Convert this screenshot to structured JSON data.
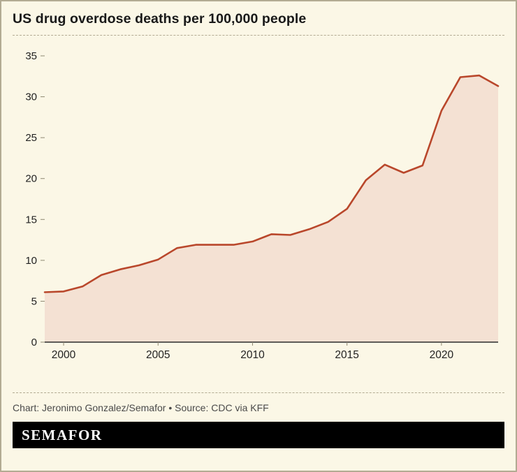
{
  "page": {
    "background": "#fbf7e6",
    "border_color": "#b3ab93"
  },
  "header": {
    "title": "US drug overdose deaths per 100,000 people"
  },
  "chart_data": {
    "type": "area",
    "title": "US drug overdose deaths per 100,000 people",
    "xlabel": "",
    "ylabel": "",
    "x": [
      1999,
      2000,
      2001,
      2002,
      2003,
      2004,
      2005,
      2006,
      2007,
      2008,
      2009,
      2010,
      2011,
      2012,
      2013,
      2014,
      2015,
      2016,
      2017,
      2018,
      2019,
      2020,
      2021,
      2022,
      2023
    ],
    "values": [
      6.1,
      6.2,
      6.8,
      8.2,
      8.9,
      9.4,
      10.1,
      11.5,
      11.9,
      11.9,
      11.9,
      12.3,
      13.2,
      13.1,
      13.8,
      14.7,
      16.3,
      19.8,
      21.7,
      20.7,
      21.6,
      28.3,
      32.4,
      32.6,
      31.3
    ],
    "xlim": [
      1999,
      2023
    ],
    "ylim": [
      0,
      35
    ],
    "x_ticks": [
      2000,
      2005,
      2010,
      2015,
      2020
    ],
    "y_ticks": [
      0,
      5,
      10,
      15,
      20,
      25,
      30,
      35
    ],
    "grid": false,
    "legend": "none",
    "line_color": "#b9472b",
    "fill_color": "#f4e1d3",
    "axis_color": "#2b2b2b",
    "tick_color": "#8e8872",
    "label_color": "#222222"
  },
  "footer": {
    "credit": "Chart: Jeronimo Gonzalez/Semafor • Source: CDC via KFF"
  },
  "logo": {
    "text": "SEMAFOR"
  }
}
